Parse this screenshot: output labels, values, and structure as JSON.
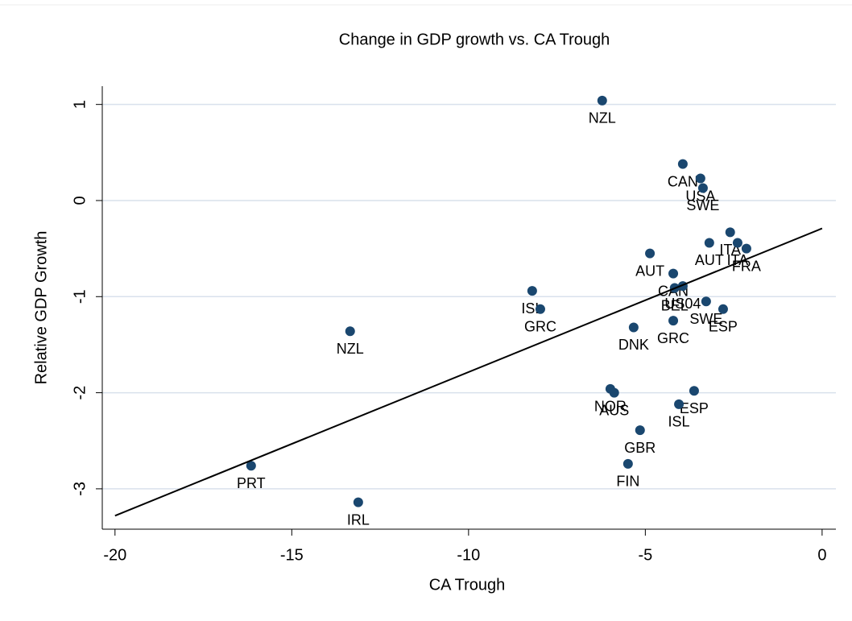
{
  "chart_data": {
    "type": "scatter",
    "title": "Change in GDP growth vs. CA Trough",
    "x_label": "CA Trough",
    "y_label": "Relative GDP Growth",
    "color": "#1a476f",
    "grid": true,
    "xlim": [
      -20.36,
      0.39
    ],
    "ylim": [
      -3.42,
      1.19
    ],
    "xticks": [
      -20,
      -15,
      -10,
      -5,
      0
    ],
    "yticks": [
      -3,
      -2,
      -1,
      0,
      1
    ],
    "x": [
      -6.22,
      -3.94,
      -3.44,
      -3.37,
      -2.6,
      -3.19,
      -2.39,
      -2.14,
      -4.87,
      -4.21,
      -3.94,
      -4.17,
      -3.28,
      -2.8,
      -4.21,
      -5.33,
      -8.2,
      -7.97,
      -13.35,
      -5.99,
      -5.88,
      -3.62,
      -4.05,
      -5.15,
      -5.49,
      -16.15,
      -13.12
    ],
    "values": [
      1.04,
      0.38,
      0.23,
      0.13,
      -0.33,
      -0.44,
      -0.44,
      -0.5,
      -0.55,
      -0.76,
      -0.89,
      -0.91,
      -1.05,
      -1.13,
      -1.25,
      -1.32,
      -0.94,
      -1.13,
      -1.36,
      -1.96,
      -2.0,
      -1.98,
      -2.12,
      -2.39,
      -2.74,
      -2.76,
      -3.14
    ],
    "point_labels": [
      "NZL",
      "CAN",
      "USA",
      "SWE",
      "ITA",
      "AUT",
      "ITA",
      "FRA",
      "AUT",
      "CAN",
      "US04",
      "BEL",
      "SWE",
      "ESP",
      "GRC",
      "DNK",
      "ISL",
      "GRC",
      "NZL",
      "NOR",
      "AUS",
      "ESP",
      "ISL",
      "GBR",
      "FIN",
      "PRT",
      "IRL"
    ],
    "fit_line": {
      "x": [
        -20,
        0
      ],
      "y": [
        -3.28,
        -0.29
      ]
    }
  }
}
